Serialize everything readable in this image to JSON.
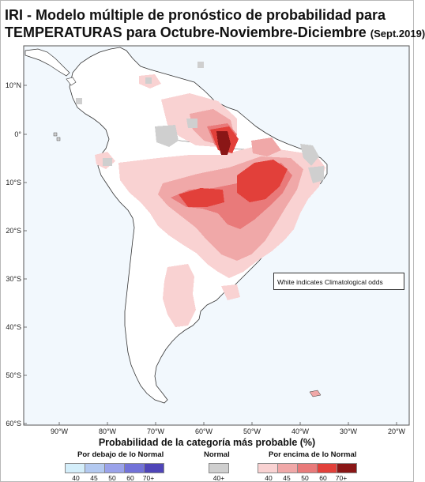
{
  "title": {
    "line1": "IRI - Modelo múltiple de pronóstico de probabilidad para",
    "line2": "TEMPERATURAS para Octubre-Noviembre-Diciembre",
    "line2_small": "(Sept.2019)"
  },
  "map": {
    "lat_labels": [
      "10°N",
      "0°",
      "10°S",
      "20°S",
      "30°S",
      "40°S",
      "50°S",
      "60°S"
    ],
    "lon_labels": [
      "90°W",
      "80°W",
      "70°W",
      "60°W",
      "50°W",
      "40°W",
      "30°W",
      "20°W"
    ],
    "ocean_color": "#f2f8fd",
    "land_color": "#ffffff",
    "note": "White indicates Climatological odds"
  },
  "legend": {
    "title": "Probabilidad de la categoría más probable (%)",
    "below": {
      "label": "Por debajo de lo Normal",
      "ticks": [
        "40",
        "45",
        "50",
        "60",
        "70+"
      ],
      "colors": [
        "#d4eefa",
        "#b3c9f0",
        "#9aa2ea",
        "#7272d8",
        "#4f45b8"
      ]
    },
    "normal": {
      "label": "Normal",
      "ticks": [
        "40+"
      ],
      "colors": [
        "#cfcfcf"
      ]
    },
    "above": {
      "label": "Por encima de lo Normal",
      "ticks": [
        "40",
        "45",
        "50",
        "60",
        "70+"
      ],
      "colors": [
        "#f9d2d2",
        "#f0a8a8",
        "#e97a7a",
        "#e2403a",
        "#8a1616"
      ]
    }
  }
}
